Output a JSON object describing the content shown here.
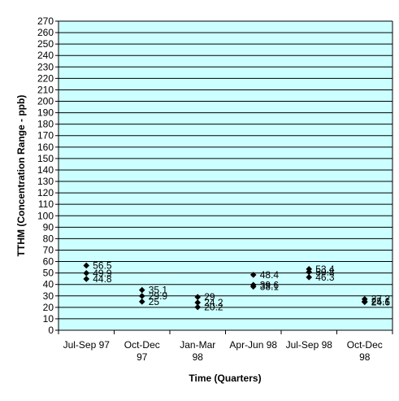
{
  "chart_data": {
    "type": "scatter",
    "xlabel": "Time (Quarters)",
    "ylabel": "TTHM (Concentration Range - ppb)",
    "ylim": [
      0,
      270
    ],
    "ytick_step": 10,
    "grid": true,
    "colors": {
      "plot_background": "#ccffff",
      "grid_line": "#000000",
      "marker": "#000000"
    },
    "categories": [
      [
        "Jul-Sep 97"
      ],
      [
        "Oct-Dec",
        "97"
      ],
      [
        "Jan-Mar",
        "98"
      ],
      [
        "Apr-Jun 98"
      ],
      [
        "Jul-Sep 98"
      ],
      [
        "Oct-Dec",
        "98"
      ]
    ],
    "points": [
      {
        "category_index": 0,
        "values": [
          56.5,
          49.9,
          44.8
        ],
        "labels": [
          "56.5",
          "49.9",
          "44.8"
        ]
      },
      {
        "category_index": 1,
        "values": [
          35.1,
          29.9,
          25
        ],
        "labels": [
          "35.1",
          "29.9",
          "25"
        ]
      },
      {
        "category_index": 2,
        "values": [
          29,
          24.2,
          20.2
        ],
        "labels": [
          "29",
          "24.2",
          "20.2"
        ]
      },
      {
        "category_index": 3,
        "values": [
          48.4,
          39.6,
          38.1
        ],
        "labels": [
          "48.4",
          "39.6",
          "38.1"
        ]
      },
      {
        "category_index": 4,
        "values": [
          53.4,
          50.8,
          46.3
        ],
        "labels": [
          "53.4",
          "50.8",
          "46.3"
        ]
      },
      {
        "category_index": 5,
        "values": [
          27.2,
          25.1,
          24.6
        ],
        "labels": [
          "27.2",
          "25.1",
          "24.6"
        ]
      }
    ]
  }
}
